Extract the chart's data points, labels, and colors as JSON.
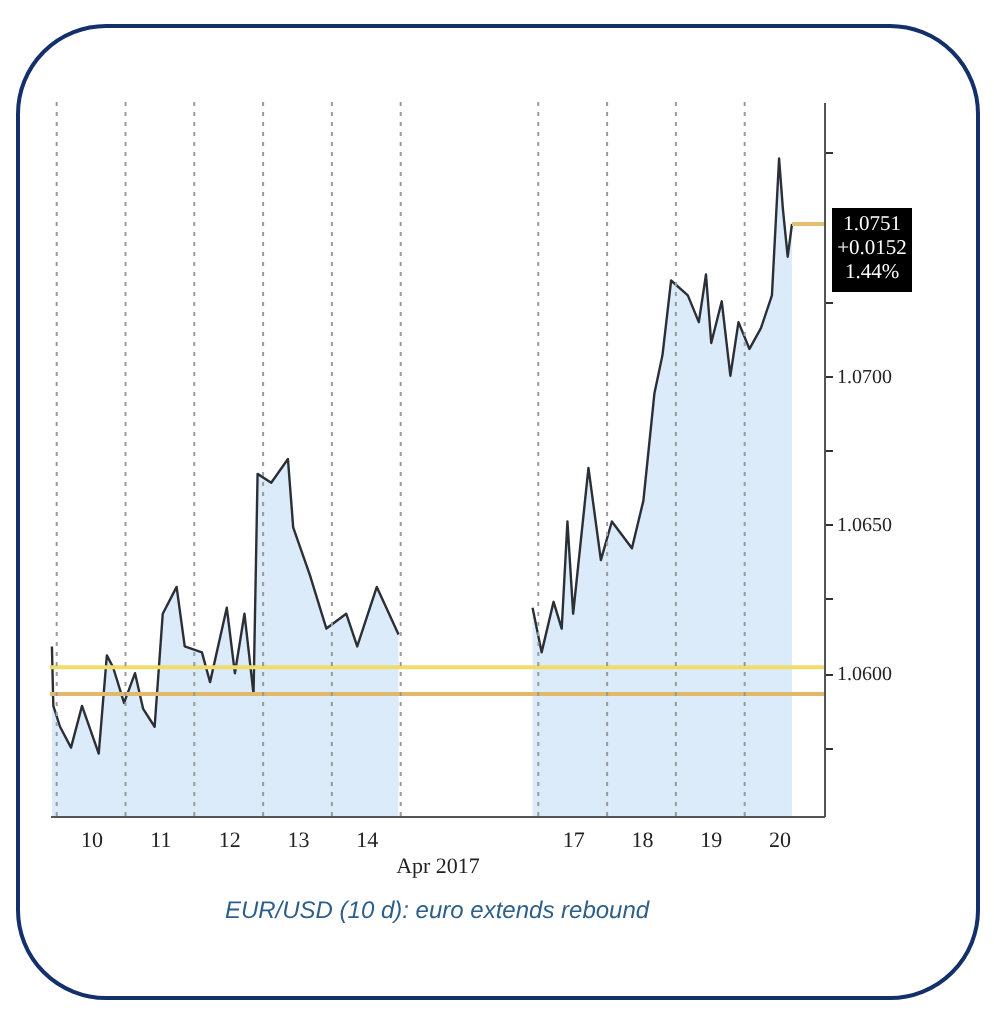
{
  "chart_data": {
    "type": "area",
    "xlabel": "Apr 2017",
    "annotations": [
      "EUR/USD (10 d): euro extends rebound"
    ],
    "xlim": [
      "2017-04-09T21:40",
      "2017-04-21T03:40"
    ],
    "xticks": [
      {
        "value": "2017-04-10T12:00",
        "label": "10"
      },
      {
        "value": "2017-04-11T12:00",
        "label": "11"
      },
      {
        "value": "2017-04-12T12:00",
        "label": "12"
      },
      {
        "value": "2017-04-13T12:00",
        "label": "13"
      },
      {
        "value": "2017-04-14T12:00",
        "label": "14"
      },
      {
        "value": "2017-04-17T12:00",
        "label": "17"
      },
      {
        "value": "2017-04-18T12:00",
        "label": "18"
      },
      {
        "value": "2017-04-19T12:00",
        "label": "19"
      },
      {
        "value": "2017-04-20T12:00",
        "label": "20"
      }
    ],
    "ylim": [
      1.0552,
      1.0792
    ],
    "yticks": [
      {
        "value": 1.0575,
        "label": null
      },
      {
        "value": 1.06,
        "label": "1.0600"
      },
      {
        "value": 1.0625,
        "label": null
      },
      {
        "value": 1.065,
        "label": "1.0650"
      },
      {
        "value": 1.0675,
        "label": null
      },
      {
        "value": 1.07,
        "label": "1.0700"
      },
      {
        "value": 1.0725,
        "label": null
      },
      {
        "value": 1.0775,
        "label": null
      }
    ],
    "series": [
      {
        "color": "#cce3f8",
        "x": [
          "2017-04-09T22:20",
          "2017-04-09T22:50",
          "2017-04-10T01:10",
          "2017-04-10T05:00",
          "2017-04-10T08:50",
          "2017-04-10T14:40",
          "2017-04-10T17:30",
          "2017-04-10T19:40",
          "2017-04-10T23:30",
          "2017-04-11T03:20",
          "2017-04-11T06:10",
          "2017-04-11T10:10",
          "2017-04-11T13:00",
          "2017-04-11T17:50",
          "2017-04-11T20:40",
          "2017-04-12T02:40",
          "2017-04-12T05:30",
          "2017-04-12T11:20",
          "2017-04-12T14:10",
          "2017-04-12T17:30",
          "2017-04-12T20:40",
          "2017-04-12T22:05",
          "2017-04-13T02:50",
          "2017-04-13T08:40",
          "2017-04-13T10:30",
          "2017-04-13T16:20",
          "2017-04-13T22:05",
          "2017-04-14T05:00",
          "2017-04-14T08:50",
          "2017-04-14T15:40",
          "2017-04-14T23:15",
          "2017-04-15T12:00",
          "2017-04-16T22:00",
          "2017-04-17T01:10",
          "2017-04-17T05:20",
          "2017-04-17T08:10",
          "2017-04-17T10:10",
          "2017-04-17T12:10",
          "2017-04-17T17:30",
          "2017-04-17T21:50",
          "2017-04-18T01:40",
          "2017-04-18T08:40",
          "2017-04-18T12:40",
          "2017-04-18T16:30",
          "2017-04-18T19:20",
          "2017-04-18T22:20",
          "2017-04-19T04:10",
          "2017-04-19T08:00",
          "2017-04-19T10:30",
          "2017-04-19T12:20",
          "2017-04-19T16:00",
          "2017-04-19T19:00",
          "2017-04-19T21:50",
          "2017-04-20T01:40",
          "2017-04-20T05:40",
          "2017-04-20T09:30",
          "2017-04-20T12:00",
          "2017-04-20T13:20",
          "2017-04-20T15:00",
          "2017-04-20T16:30"
        ],
        "values": [
          1.0609,
          1.0589,
          1.0582,
          1.0575,
          1.0589,
          1.0573,
          1.0606,
          1.0602,
          1.059,
          1.06,
          1.0588,
          1.0582,
          1.062,
          1.0629,
          1.0609,
          1.0607,
          1.0597,
          1.0622,
          1.06,
          1.062,
          1.0593,
          1.0667,
          1.0664,
          1.0672,
          1.0649,
          1.0633,
          1.0615,
          1.062,
          1.0609,
          1.0629,
          1.0613,
          null,
          1.0622,
          1.0607,
          1.0624,
          1.0615,
          1.0651,
          1.062,
          1.0669,
          1.0638,
          1.0651,
          1.0642,
          1.0658,
          1.0694,
          1.0707,
          1.0732,
          1.0727,
          1.0718,
          1.0734,
          1.0711,
          1.0725,
          1.07,
          1.0718,
          1.0709,
          1.0716,
          1.0727,
          1.0773,
          1.0756,
          1.074,
          1.0751
        ]
      }
    ],
    "ref_lines": [
      {
        "axis": "y",
        "value": 1.0602,
        "color": "#f0dc6a"
      },
      {
        "axis": "y",
        "value": 1.0593,
        "color": "#e2b86a"
      },
      {
        "axis": "y",
        "value": 1.0751,
        "label": "1.0751 +0.0152 1.44%",
        "color": "#e3c070"
      },
      {
        "axis": "x",
        "value": "2017-04-10",
        "color": "#9a9a9a",
        "line_style": "dotted"
      },
      {
        "axis": "x",
        "value": "2017-04-11",
        "color": "#9a9a9a",
        "line_style": "dotted"
      },
      {
        "axis": "x",
        "value": "2017-04-12",
        "color": "#9a9a9a",
        "line_style": "dotted"
      },
      {
        "axis": "x",
        "value": "2017-04-13",
        "color": "#9a9a9a",
        "line_style": "dotted"
      },
      {
        "axis": "x",
        "value": "2017-04-14",
        "color": "#9a9a9a",
        "line_style": "dotted"
      },
      {
        "axis": "x",
        "value": "2017-04-15",
        "color": "#9a9a9a",
        "line_style": "dotted"
      },
      {
        "axis": "x",
        "value": "2017-04-17",
        "color": "#9a9a9a",
        "line_style": "dotted"
      },
      {
        "axis": "x",
        "value": "2017-04-18",
        "color": "#9a9a9a",
        "line_style": "dotted"
      },
      {
        "axis": "x",
        "value": "2017-04-19",
        "color": "#9a9a9a",
        "line_style": "dotted"
      },
      {
        "axis": "x",
        "value": "2017-04-20",
        "color": "#9a9a9a",
        "line_style": "dotted"
      }
    ]
  }
}
